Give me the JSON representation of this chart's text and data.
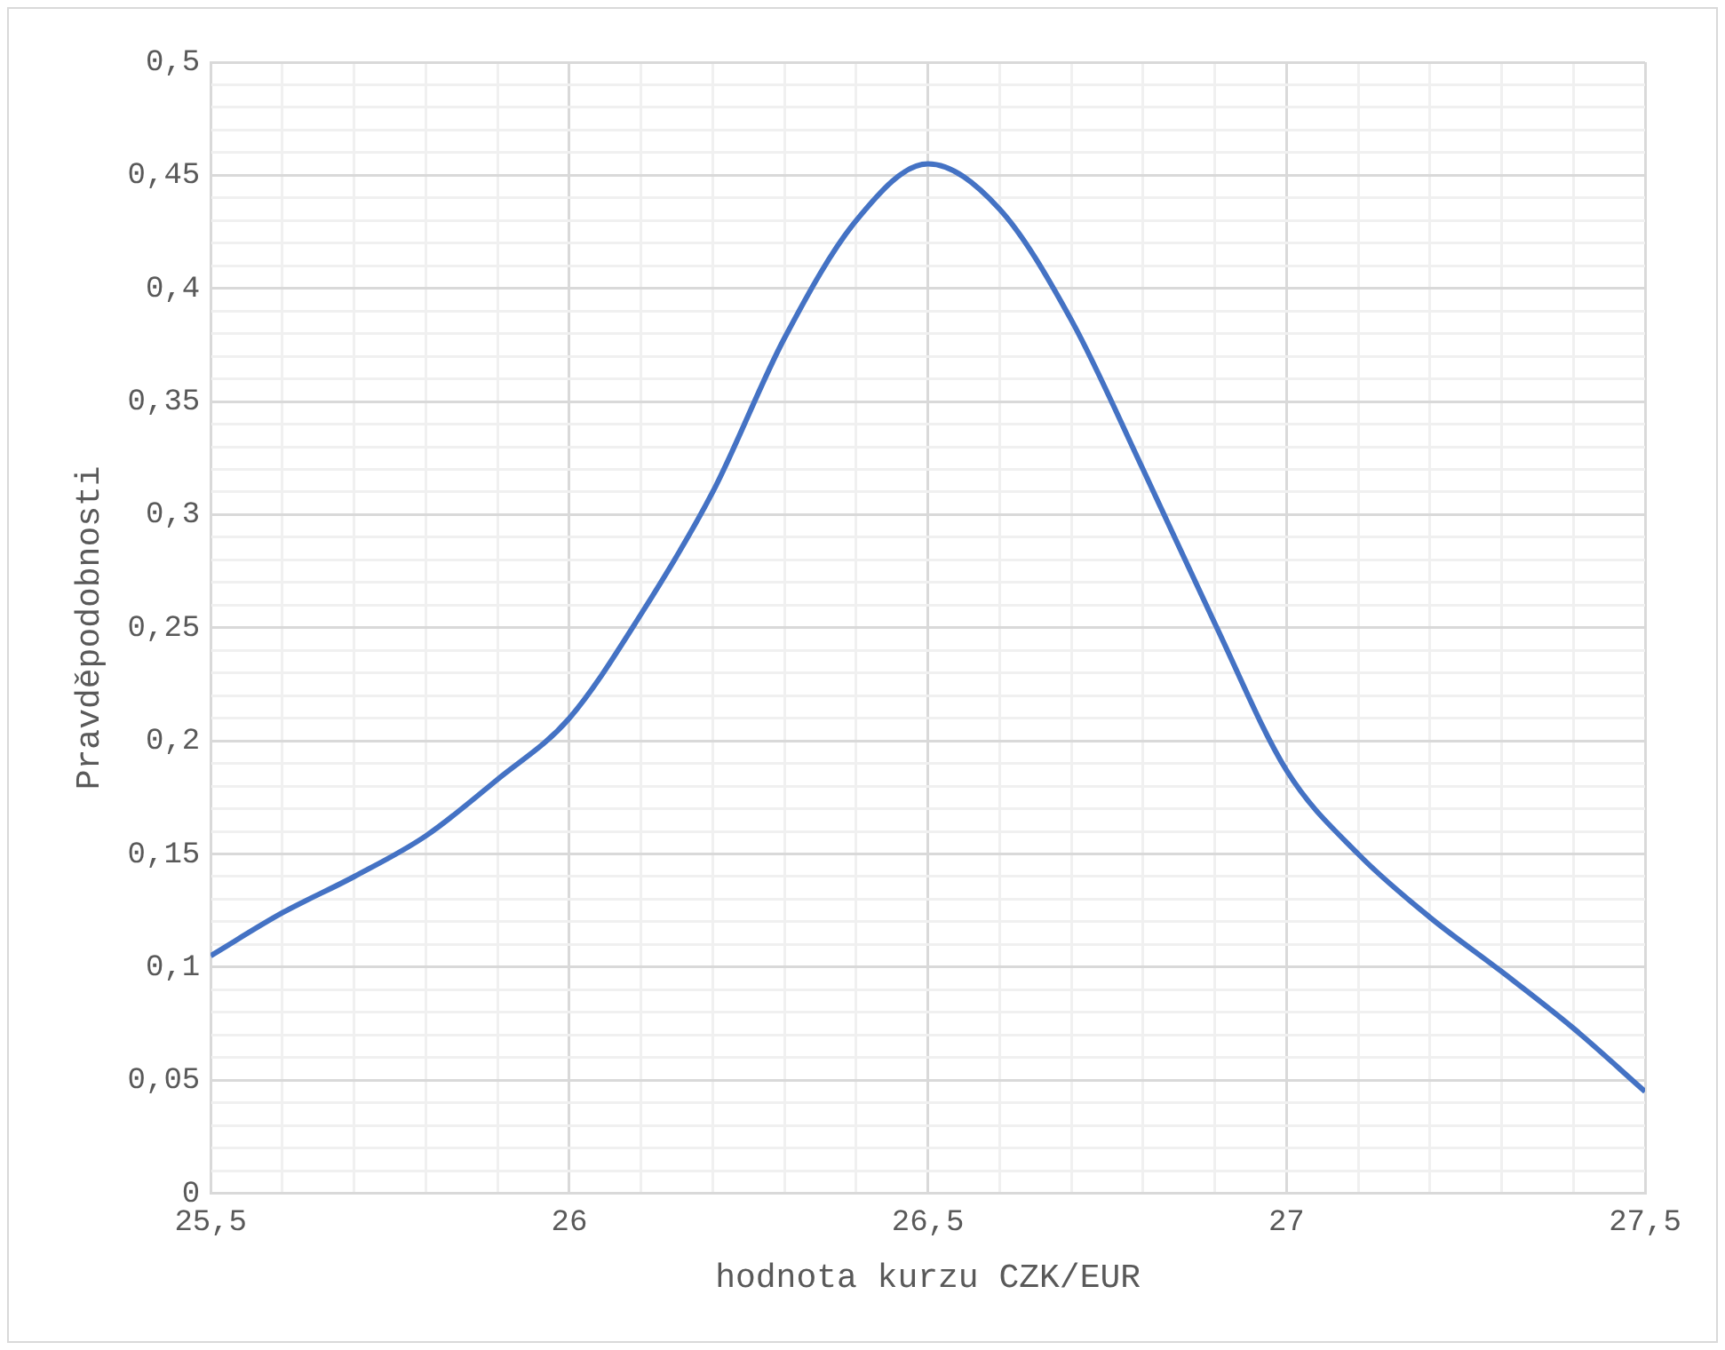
{
  "chart_data": {
    "type": "line",
    "xlabel": "hodnota kurzu CZK/EUR",
    "ylabel": "Pravděpodobnosti",
    "x": [
      25.5,
      25.6,
      25.7,
      25.8,
      25.9,
      26,
      26.1,
      26.2,
      26.3,
      26.4,
      26.5,
      26.6,
      26.7,
      26.8,
      26.9,
      27,
      27.1,
      27.2,
      27.3,
      27.4,
      27.5
    ],
    "series": [
      {
        "color": "#4472c4",
        "values": [
          0.105,
          0.124,
          0.14,
          0.158,
          0.183,
          0.21,
          0.256,
          0.31,
          0.378,
          0.43,
          0.455,
          0.435,
          0.386,
          0.32,
          0.252,
          0.187,
          0.15,
          0.122,
          0.098,
          0.073,
          0.045
        ]
      }
    ],
    "xlim": [
      25.5,
      27.5
    ],
    "xticks": [
      {
        "value": 25.5,
        "label": "25,5"
      },
      {
        "value": 25.6,
        "label": null
      },
      {
        "value": 25.7,
        "label": null
      },
      {
        "value": 25.8,
        "label": null
      },
      {
        "value": 25.9,
        "label": null
      },
      {
        "value": 26,
        "label": "26"
      },
      {
        "value": 26.1,
        "label": null
      },
      {
        "value": 26.2,
        "label": null
      },
      {
        "value": 26.3,
        "label": null
      },
      {
        "value": 26.4,
        "label": null
      },
      {
        "value": 26.5,
        "label": "26,5"
      },
      {
        "value": 26.6,
        "label": null
      },
      {
        "value": 26.7,
        "label": null
      },
      {
        "value": 26.8,
        "label": null
      },
      {
        "value": 26.9,
        "label": null
      },
      {
        "value": 27,
        "label": "27"
      },
      {
        "value": 27.1,
        "label": null
      },
      {
        "value": 27.2,
        "label": null
      },
      {
        "value": 27.3,
        "label": null
      },
      {
        "value": 27.4,
        "label": null
      },
      {
        "value": 27.5,
        "label": "27,5"
      }
    ],
    "ylim": [
      0,
      0.5
    ],
    "yticks": [
      0,
      {
        "value": 0.01,
        "label": null
      },
      {
        "value": 0.02,
        "label": null
      },
      {
        "value": 0.03,
        "label": null
      },
      {
        "value": 0.04,
        "label": null
      },
      {
        "value": 0.05,
        "label": "0,05"
      },
      {
        "value": 0.06,
        "label": null
      },
      {
        "value": 0.07,
        "label": null
      },
      {
        "value": 0.08,
        "label": null
      },
      {
        "value": 0.09,
        "label": null
      },
      {
        "value": 0.1,
        "label": "0,1"
      },
      {
        "value": 0.11,
        "label": null
      },
      {
        "value": 0.12,
        "label": null
      },
      {
        "value": 0.13,
        "label": null
      },
      {
        "value": 0.14,
        "label": null
      },
      {
        "value": 0.15,
        "label": "0,15"
      },
      {
        "value": 0.16,
        "label": null
      },
      {
        "value": 0.17,
        "label": null
      },
      {
        "value": 0.18,
        "label": null
      },
      {
        "value": 0.19,
        "label": null
      },
      {
        "value": 0.2,
        "label": "0,2"
      },
      {
        "value": 0.21,
        "label": null
      },
      {
        "value": 0.22,
        "label": null
      },
      {
        "value": 0.23,
        "label": null
      },
      {
        "value": 0.24,
        "label": null
      },
      {
        "value": 0.25,
        "label": "0,25"
      },
      {
        "value": 0.26,
        "label": null
      },
      {
        "value": 0.27,
        "label": null
      },
      {
        "value": 0.28,
        "label": null
      },
      {
        "value": 0.29,
        "label": null
      },
      {
        "value": 0.3,
        "label": "0,3"
      },
      {
        "value": 0.31,
        "label": null
      },
      {
        "value": 0.32,
        "label": null
      },
      {
        "value": 0.33,
        "label": null
      },
      {
        "value": 0.34,
        "label": null
      },
      {
        "value": 0.35,
        "label": "0,35"
      },
      {
        "value": 0.36,
        "label": null
      },
      {
        "value": 0.37,
        "label": null
      },
      {
        "value": 0.38,
        "label": null
      },
      {
        "value": 0.39,
        "label": null
      },
      {
        "value": 0.4,
        "label": "0,4"
      },
      {
        "value": 0.41,
        "label": null
      },
      {
        "value": 0.42,
        "label": null
      },
      {
        "value": 0.43,
        "label": null
      },
      {
        "value": 0.44,
        "label": null
      },
      {
        "value": 0.45,
        "label": "0,45"
      },
      {
        "value": 0.46,
        "label": null
      },
      {
        "value": 0.47,
        "label": null
      },
      {
        "value": 0.48,
        "label": null
      },
      {
        "value": 0.49,
        "label": null
      },
      {
        "value": 0.5,
        "label": "0,5"
      }
    ],
    "grid": true,
    "marker": "none",
    "line_style": "solid"
  }
}
